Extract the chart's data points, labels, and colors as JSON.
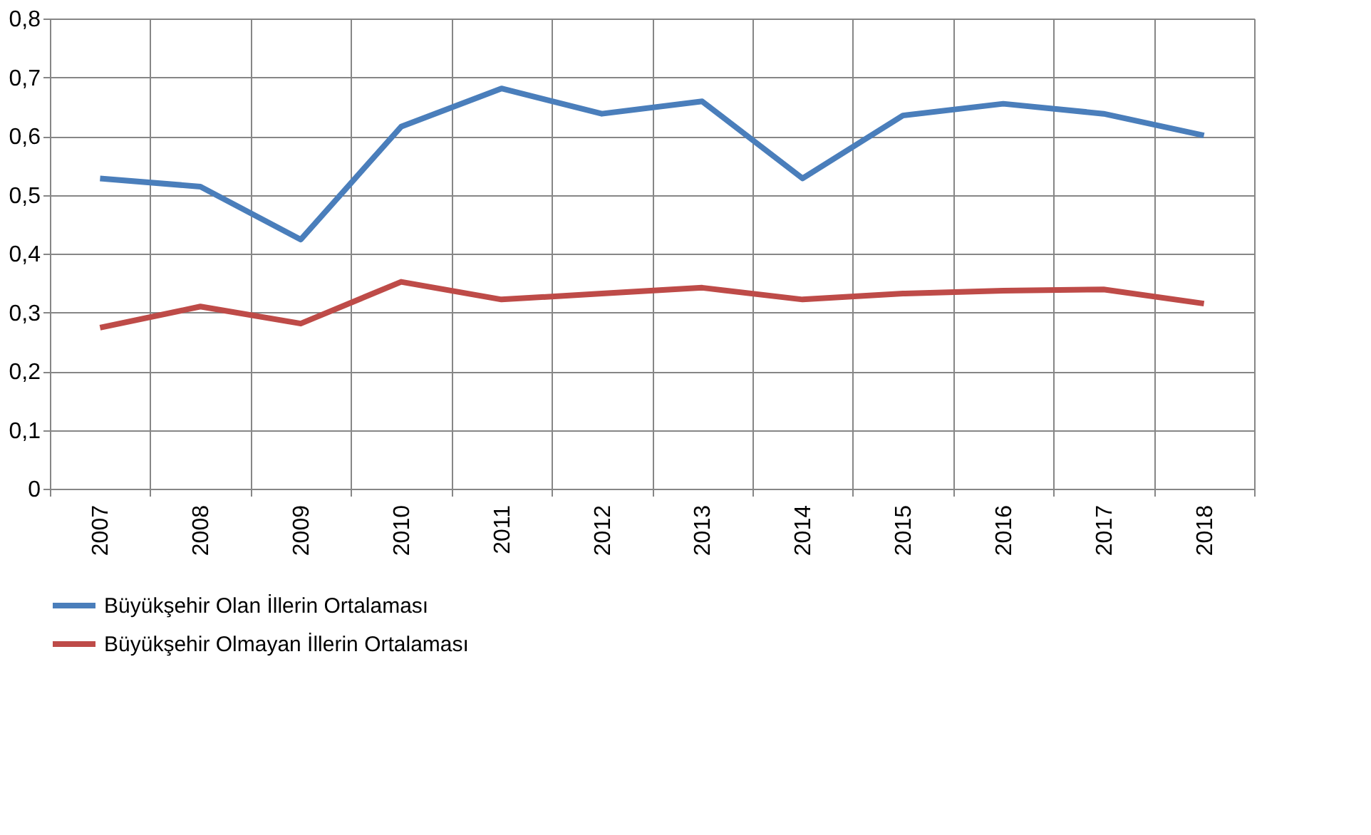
{
  "chart_data": {
    "type": "line",
    "categories": [
      "2007",
      "2008",
      "2009",
      "2010",
      "2011",
      "2012",
      "2013",
      "2014",
      "2015",
      "2016",
      "2017",
      "2018"
    ],
    "series": [
      {
        "name": "Büyükşehir Olan İllerin Ortalaması",
        "color": "#4a7ebb",
        "values": [
          0.528,
          0.514,
          0.424,
          0.616,
          0.681,
          0.638,
          0.659,
          0.528,
          0.635,
          0.655,
          0.638,
          0.601
        ]
      },
      {
        "name": "Büyükşehir Olmayan İllerin Ortalaması",
        "color": "#be4b48",
        "values": [
          0.274,
          0.31,
          0.281,
          0.352,
          0.322,
          0.332,
          0.342,
          0.322,
          0.332,
          0.337,
          0.339,
          0.315
        ]
      }
    ],
    "ylim": [
      0,
      0.8
    ],
    "yticks": [
      0,
      {
        "value": 0.1,
        "label": "0,1"
      },
      {
        "value": 0.2,
        "label": "0,2"
      },
      {
        "value": 0.3,
        "label": "0,3"
      },
      {
        "value": 0.4,
        "label": "0,4"
      },
      {
        "value": 0.5,
        "label": "0,5"
      },
      {
        "value": 0.6,
        "label": "0,6"
      },
      {
        "value": 0.7,
        "label": "0,7"
      },
      {
        "value": 0.8,
        "label": "0,8"
      }
    ],
    "grid": true,
    "legend": "bottom",
    "marker": "none",
    "line_style": "solid"
  }
}
